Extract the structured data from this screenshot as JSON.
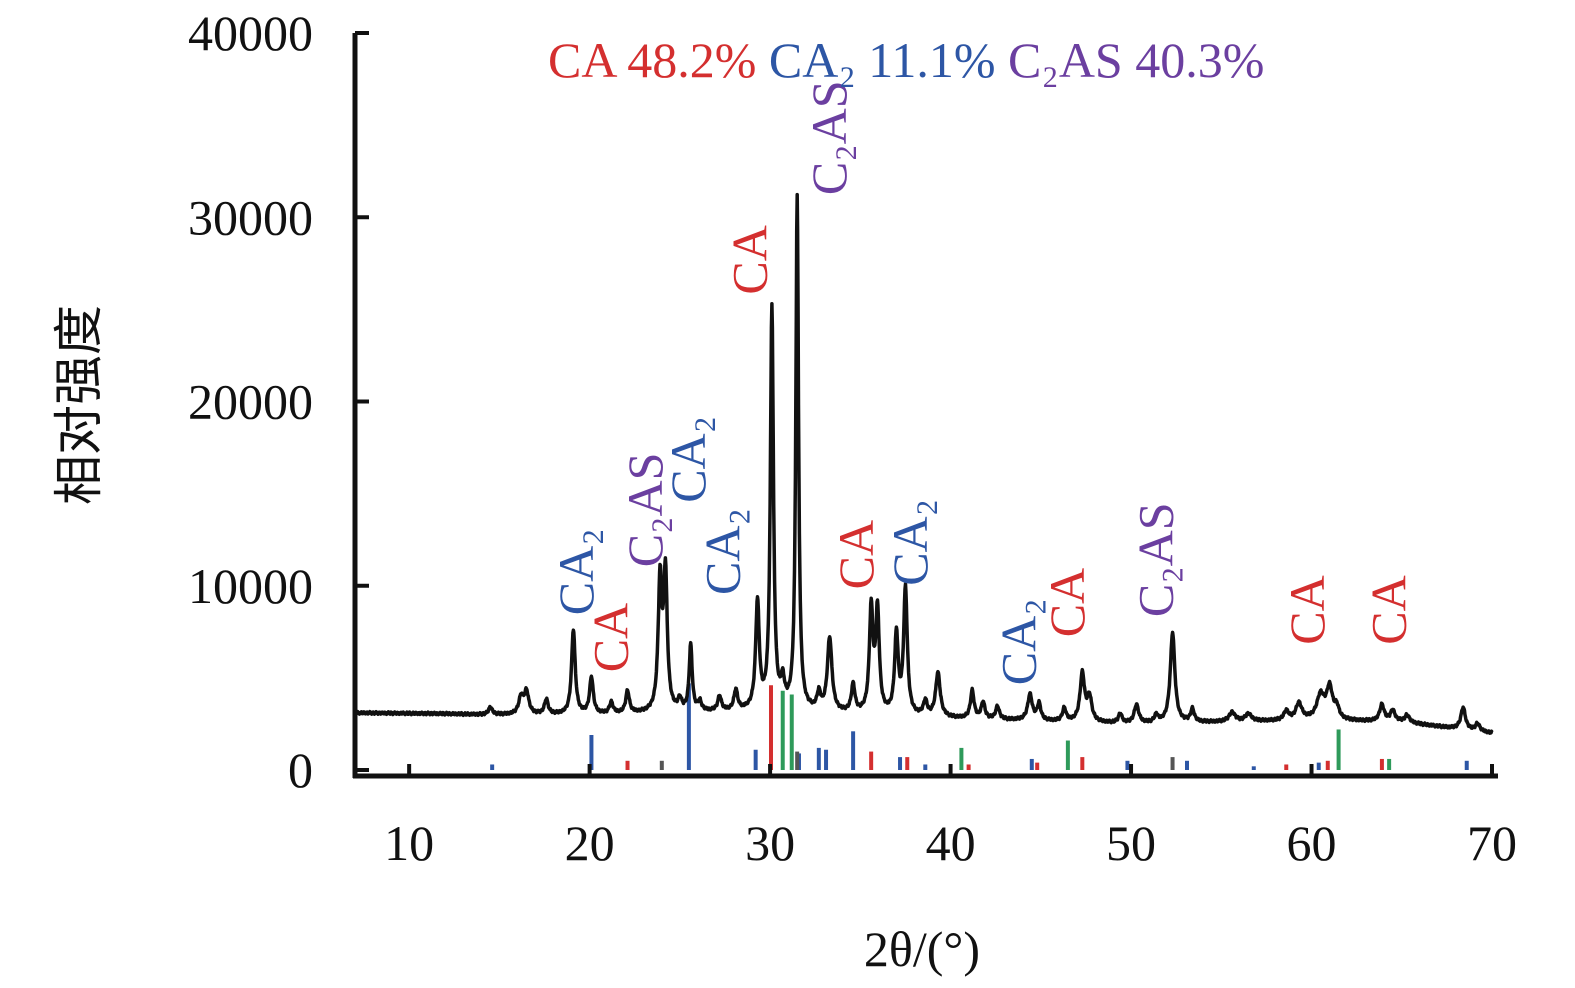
{
  "colors": {
    "CA": "#d42f2f",
    "CA2": "#2d56a5",
    "C2AS": "#6b3fa0",
    "ref_green": "#2e9a5a",
    "ref_gray": "#555555",
    "pattern": "#111111"
  },
  "chart_data": {
    "type": "line",
    "title": "",
    "xlabel": "2θ/(°)",
    "ylabel": "相对强度",
    "xlim": [
      7,
      70
    ],
    "ylim": [
      0,
      40000
    ],
    "xticks": [
      10,
      20,
      30,
      40,
      50,
      60,
      70
    ],
    "yticks": [
      0,
      10000,
      20000,
      30000,
      40000
    ],
    "xtick_labels": [
      "10",
      "20",
      "30",
      "40",
      "50",
      "60",
      "70"
    ],
    "ytick_labels": [
      "0",
      "10000",
      "20000",
      "30000",
      "40000"
    ],
    "legend": [
      {
        "phase": "CA",
        "text": "CA 48.2%"
      },
      {
        "phase": "CA2",
        "text": "CA₂ 11.1%"
      },
      {
        "phase": "C2AS",
        "text": "C₂AS 40.3%"
      }
    ],
    "baseline": [
      [
        7,
        3100
      ],
      [
        12,
        3050
      ],
      [
        14,
        3000
      ],
      [
        20,
        3000
      ],
      [
        30,
        3200
      ],
      [
        40,
        2800
      ],
      [
        50,
        2500
      ],
      [
        60,
        2700
      ],
      [
        65,
        2600
      ],
      [
        70,
        2000
      ]
    ],
    "peaks": [
      [
        14.5,
        400,
        0.12
      ],
      [
        16.2,
        900,
        0.15
      ],
      [
        16.5,
        1200,
        0.15
      ],
      [
        17.6,
        800,
        0.12
      ],
      [
        19.1,
        4600,
        0.12
      ],
      [
        20.1,
        2000,
        0.12
      ],
      [
        21.2,
        600,
        0.12
      ],
      [
        22.1,
        1200,
        0.12
      ],
      [
        23.9,
        7000,
        0.12
      ],
      [
        24.2,
        7400,
        0.12
      ],
      [
        25.0,
        600,
        0.12
      ],
      [
        25.6,
        3600,
        0.1
      ],
      [
        26.1,
        500,
        0.12
      ],
      [
        27.2,
        800,
        0.12
      ],
      [
        28.1,
        1100,
        0.12
      ],
      [
        29.3,
        5800,
        0.12
      ],
      [
        30.1,
        21800,
        0.1
      ],
      [
        30.7,
        1300,
        0.12
      ],
      [
        31.5,
        27900,
        0.09
      ],
      [
        32.7,
        900,
        0.12
      ],
      [
        33.3,
        4000,
        0.15
      ],
      [
        34.6,
        1500,
        0.12
      ],
      [
        35.6,
        5600,
        0.12
      ],
      [
        35.95,
        5500,
        0.12
      ],
      [
        37.0,
        4300,
        0.12
      ],
      [
        37.5,
        6800,
        0.12
      ],
      [
        38.6,
        800,
        0.12
      ],
      [
        39.3,
        2400,
        0.15
      ],
      [
        41.2,
        1500,
        0.12
      ],
      [
        41.8,
        900,
        0.12
      ],
      [
        42.6,
        700,
        0.12
      ],
      [
        44.4,
        1400,
        0.15
      ],
      [
        44.9,
        900,
        0.12
      ],
      [
        46.3,
        700,
        0.12
      ],
      [
        47.3,
        2600,
        0.15
      ],
      [
        47.7,
        1300,
        0.15
      ],
      [
        49.4,
        500,
        0.12
      ],
      [
        50.3,
        1000,
        0.15
      ],
      [
        51.4,
        400,
        0.12
      ],
      [
        52.3,
        4900,
        0.15
      ],
      [
        53.4,
        700,
        0.12
      ],
      [
        55.6,
        500,
        0.2
      ],
      [
        56.5,
        400,
        0.2
      ],
      [
        58.6,
        500,
        0.15
      ],
      [
        59.3,
        900,
        0.2
      ],
      [
        60.5,
        1300,
        0.25
      ],
      [
        61.0,
        1700,
        0.2
      ],
      [
        61.4,
        600,
        0.15
      ],
      [
        63.9,
        900,
        0.15
      ],
      [
        64.5,
        600,
        0.15
      ],
      [
        65.3,
        400,
        0.15
      ],
      [
        68.4,
        1200,
        0.15
      ],
      [
        69.2,
        400,
        0.15
      ]
    ],
    "reference_lines": [
      {
        "phase": "CA",
        "x": [
          22.1,
          30.05,
          35.6,
          37.6,
          41.0,
          44.8,
          47.3,
          58.6,
          60.9,
          63.9
        ],
        "h": [
          500,
          4600,
          1000,
          700,
          300,
          400,
          700,
          300,
          500,
          600
        ]
      },
      {
        "phase": "CA2",
        "x": [
          14.6,
          20.1,
          25.5,
          29.2,
          31.6,
          32.7,
          33.1,
          34.6,
          37.2,
          38.6,
          44.5,
          49.8,
          53.1,
          56.8,
          60.4,
          68.6
        ],
        "h": [
          300,
          1900,
          4700,
          1100,
          900,
          1200,
          1100,
          2100,
          700,
          300,
          600,
          500,
          500,
          200,
          400,
          500
        ]
      },
      {
        "phase": "ref_green",
        "x": [
          30.7,
          31.2,
          40.6,
          46.5,
          61.5,
          64.3
        ],
        "h": [
          4300,
          4100,
          1200,
          1600,
          2200,
          600
        ]
      },
      {
        "phase": "ref_gray",
        "x": [
          24.0,
          31.5,
          52.3
        ],
        "h": [
          500,
          1000,
          700
        ]
      }
    ],
    "annotations": [
      {
        "phase": "CA2",
        "text": "CA₂",
        "x": 20.2,
        "y": 8400
      },
      {
        "phase": "CA",
        "text": "CA",
        "x": 22.1,
        "y": 5300
      },
      {
        "phase": "C2AS",
        "text": "C₂AS",
        "x": 24.0,
        "y": 11000
      },
      {
        "phase": "CA2",
        "text": "CA₂",
        "x": 26.4,
        "y": 14500
      },
      {
        "phase": "CA2",
        "text": "CA₂",
        "x": 28.3,
        "y": 9500
      },
      {
        "phase": "CA",
        "text": "CA",
        "x": 29.8,
        "y": 25800
      },
      {
        "phase": "C2AS",
        "text": "C₂AS",
        "x": 34.2,
        "y": 31200
      },
      {
        "phase": "CA",
        "text": "CA",
        "x": 35.7,
        "y": 9800
      },
      {
        "phase": "CA2",
        "text": "CA₂",
        "x": 38.7,
        "y": 10000
      },
      {
        "phase": "CA2",
        "text": "CA₂",
        "x": 44.7,
        "y": 4600
      },
      {
        "phase": "CA",
        "text": "CA",
        "x": 47.4,
        "y": 7200
      },
      {
        "phase": "C2AS",
        "text": "C₂AS",
        "x": 52.3,
        "y": 8300
      },
      {
        "phase": "CA",
        "text": "CA",
        "x": 60.7,
        "y": 6800
      },
      {
        "phase": "CA",
        "text": "CA",
        "x": 65.2,
        "y": 6800
      }
    ]
  }
}
